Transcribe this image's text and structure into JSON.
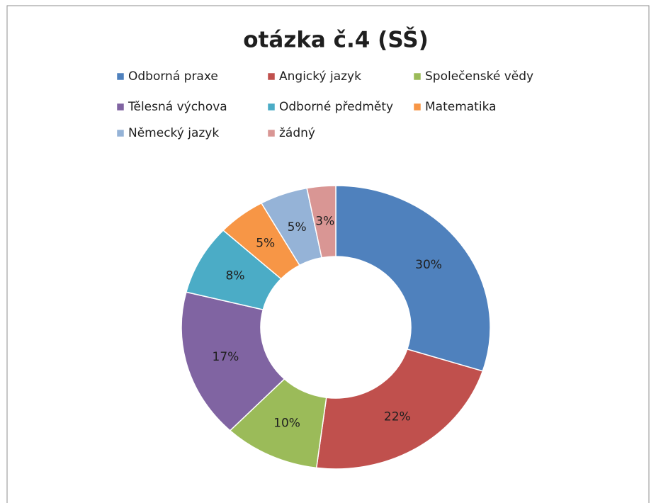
{
  "chart_data": {
    "type": "donut",
    "title": "otázka č.4 (SŠ)",
    "categories": [
      "Odborná praxe",
      "Angický jazyk",
      "Společenské vědy",
      "Tělesná výchova",
      "Odborné předměty",
      "Matematika",
      "Německý jazyk",
      "žádný"
    ],
    "values": [
      30,
      22,
      10,
      17,
      8,
      5,
      5,
      3
    ],
    "value_labels": [
      "30%",
      "22%",
      "10%",
      "17%",
      "8%",
      "5%",
      "5%",
      "3%"
    ],
    "colors": [
      "#4f81bd",
      "#c0504d",
      "#9bbb59",
      "#8064a2",
      "#4bacc6",
      "#f79646",
      "#95b3d7",
      "#d99694"
    ],
    "legend": "top"
  }
}
